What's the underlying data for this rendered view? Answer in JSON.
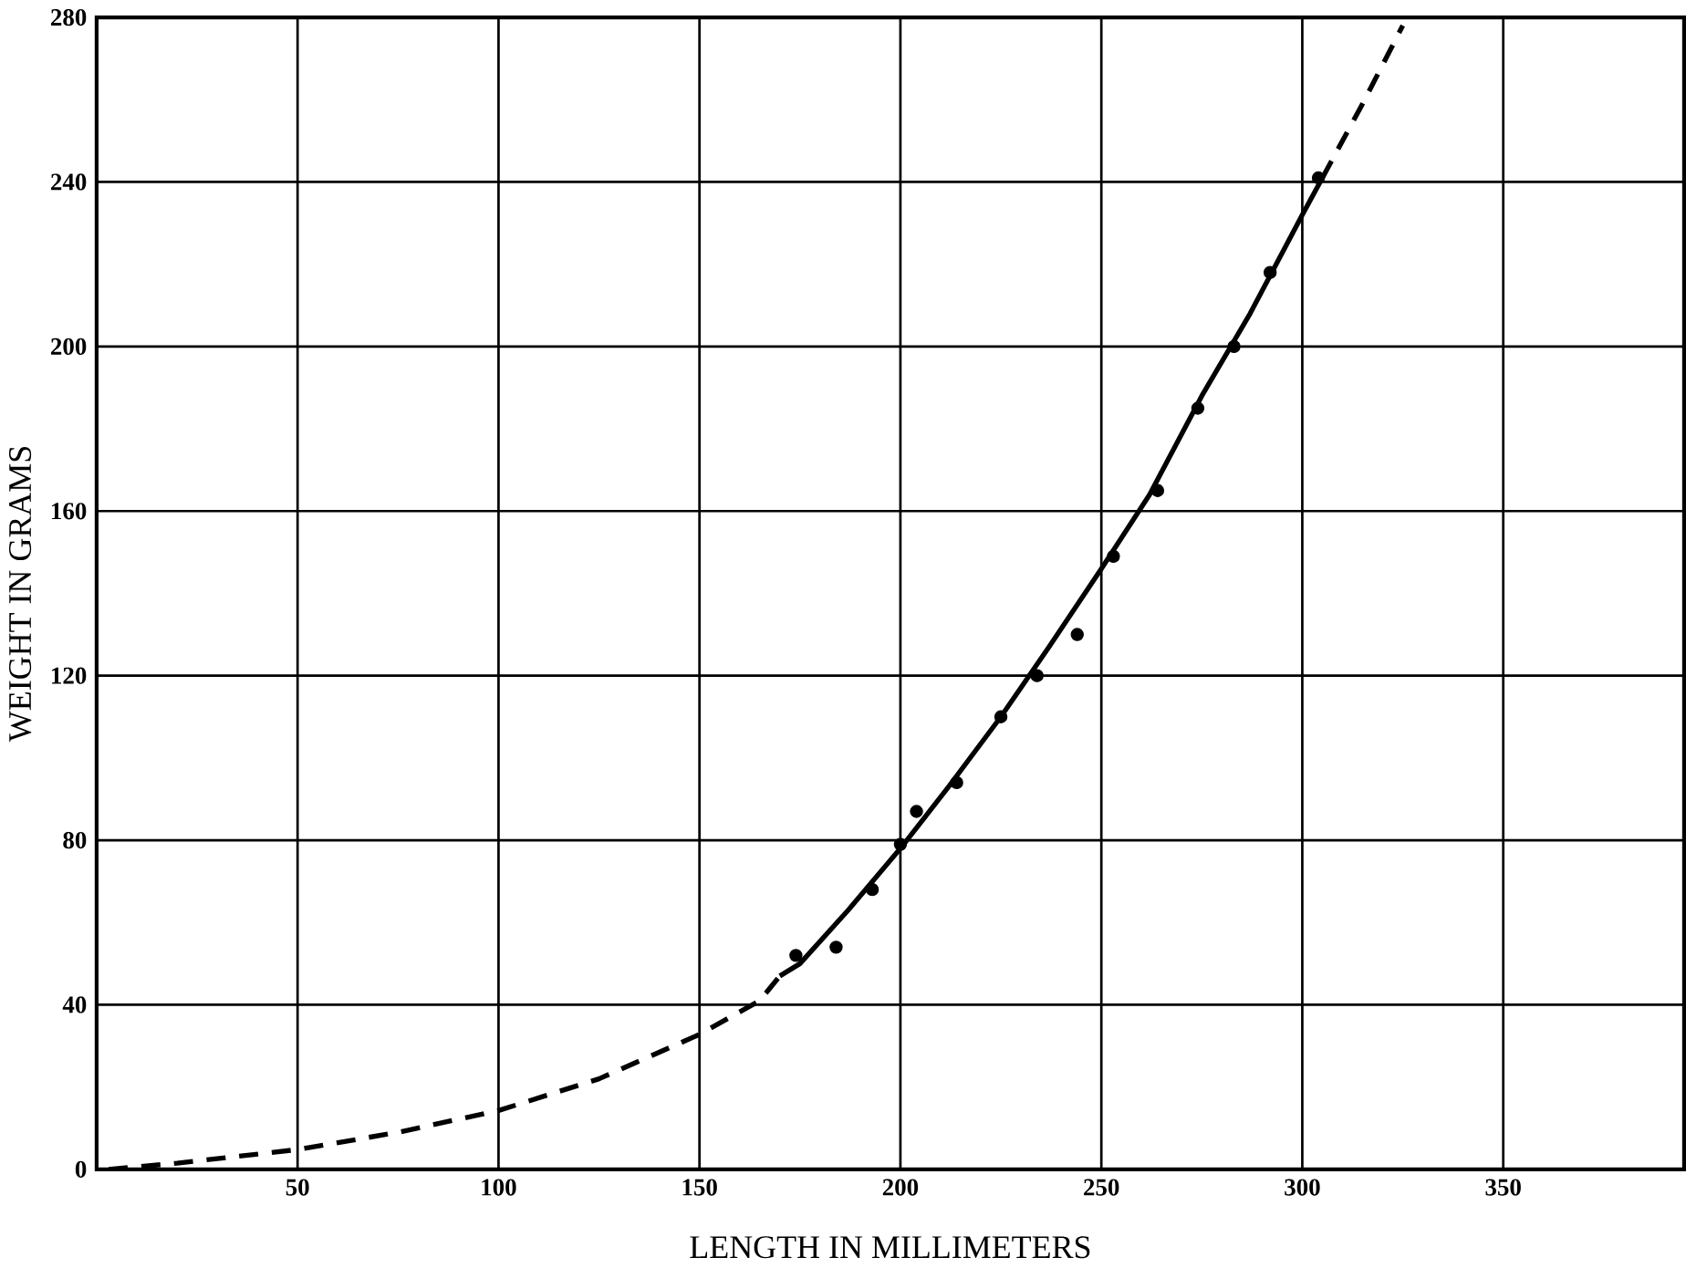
{
  "chart_data": {
    "type": "scatter",
    "xlabel": "LENGTH IN MILLIMETERS",
    "ylabel": "WEIGHT IN GRAMS",
    "xlim": [
      0,
      395
    ],
    "ylim": [
      0,
      280
    ],
    "xticks": [
      50,
      100,
      150,
      200,
      250,
      300,
      350
    ],
    "yticks": [
      0,
      40,
      80,
      120,
      160,
      200,
      240,
      280
    ],
    "grid": true,
    "series": [
      {
        "color": "#000000",
        "marker": "circle",
        "x": [
          174,
          184,
          193,
          200,
          204,
          214,
          225,
          234,
          244,
          253,
          264,
          274,
          283,
          292,
          304
        ],
        "values": [
          52,
          54,
          68,
          79,
          87,
          94,
          110,
          120,
          130,
          149,
          165,
          185,
          200,
          218,
          241
        ]
      },
      {
        "type": "line",
        "color": "#000000",
        "line_style": "solid",
        "marker": "none",
        "x": [
          170,
          175,
          187,
          200,
          212,
          225,
          237,
          250,
          262,
          275,
          287,
          300,
          305
        ],
        "values": [
          47,
          50,
          63,
          78,
          93,
          110,
          127,
          146,
          164,
          188,
          208,
          232,
          241
        ]
      },
      {
        "type": "line",
        "color": "#000000",
        "line_style": "dashed",
        "marker": "none",
        "x": [
          3,
          20,
          50,
          75,
          100,
          125,
          150,
          165,
          170,
          240,
          305,
          315,
          325
        ],
        "values": [
          0,
          1.5,
          4.8,
          9,
          14.3,
          22,
          32.8,
          41,
          47,
          null,
          241,
          259,
          278
        ]
      }
    ]
  }
}
